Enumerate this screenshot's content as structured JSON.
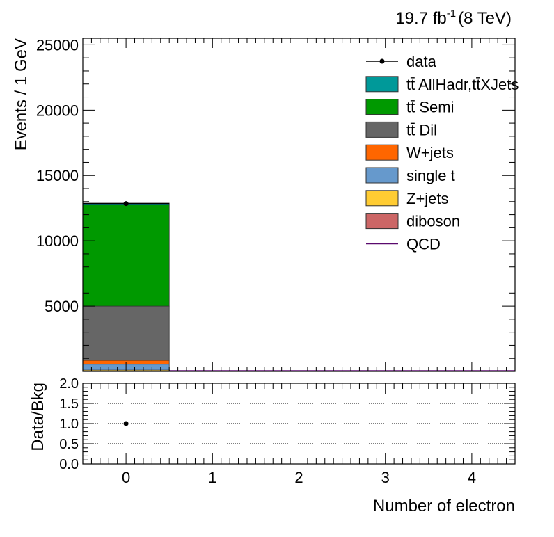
{
  "header": {
    "lumi_value": "19.7 fb",
    "lumi_exponent": "-1",
    "energy": "(8 TeV)"
  },
  "chart_data": [
    {
      "type": "bar",
      "stacked": true,
      "xlabel": "",
      "ylabel": "Events / 1 GeV",
      "xlim": [
        -0.5,
        4.5
      ],
      "ylim": [
        0,
        25500
      ],
      "yticks": [
        5000,
        10000,
        15000,
        20000,
        25000
      ],
      "ytick_labels": [
        "5000",
        "10000",
        "15000",
        "20000",
        "25000"
      ],
      "bin_edges": [
        -0.5,
        0.5,
        1.5,
        2.5,
        3.5,
        4.5
      ],
      "series": [
        {
          "name": "QCD",
          "color": "#5a0a6e",
          "values": [
            0,
            0,
            0,
            0,
            0
          ]
        },
        {
          "name": "diboson",
          "color": "#cc6666",
          "values": [
            20,
            0,
            0,
            0,
            0
          ]
        },
        {
          "name": "Z+jets",
          "color": "#ffcc33",
          "values": [
            80,
            0,
            0,
            0,
            0
          ]
        },
        {
          "name": "single t",
          "color": "#6699cc",
          "values": [
            450,
            0,
            0,
            0,
            0
          ]
        },
        {
          "name": "W+jets",
          "color": "#ff6600",
          "values": [
            300,
            0,
            0,
            0,
            0
          ]
        },
        {
          "name": "tt̄ Dil",
          "color": "#666666",
          "values": [
            4150,
            0,
            0,
            0,
            0
          ]
        },
        {
          "name": "tt̄ Semi",
          "color": "#009900",
          "values": [
            7750,
            0,
            0,
            0,
            0
          ]
        },
        {
          "name": "tt̄ AllHadr,tt̄XJets",
          "color": "#009999",
          "values": [
            130,
            0,
            0,
            0,
            0
          ]
        }
      ],
      "data": {
        "name": "data",
        "x": [
          0
        ],
        "y": [
          12850
        ]
      },
      "legend_order": [
        "data",
        "tt̄ AllHadr,tt̄XJets",
        "tt̄ Semi",
        "tt̄ Dil",
        "W+jets",
        "single t",
        "Z+jets",
        "diboson",
        "QCD"
      ],
      "legend_position": "top-right"
    },
    {
      "type": "scatter",
      "xlabel": "Number of electron",
      "ylabel": "Data/Bkg",
      "xlim": [
        -0.5,
        4.5
      ],
      "ylim": [
        0,
        2
      ],
      "xticks": [
        0,
        1,
        2,
        3,
        4
      ],
      "xtick_labels": [
        "0",
        "1",
        "2",
        "3",
        "4"
      ],
      "yticks": [
        0,
        0.5,
        1,
        1.5,
        2
      ],
      "ytick_labels": [
        "0.0",
        "0.5",
        "1.0",
        "1.5",
        "2.0"
      ],
      "gridlines_y": [
        0.5,
        1,
        1.5
      ],
      "points": {
        "x": [
          0
        ],
        "y": [
          1.0
        ]
      }
    }
  ]
}
